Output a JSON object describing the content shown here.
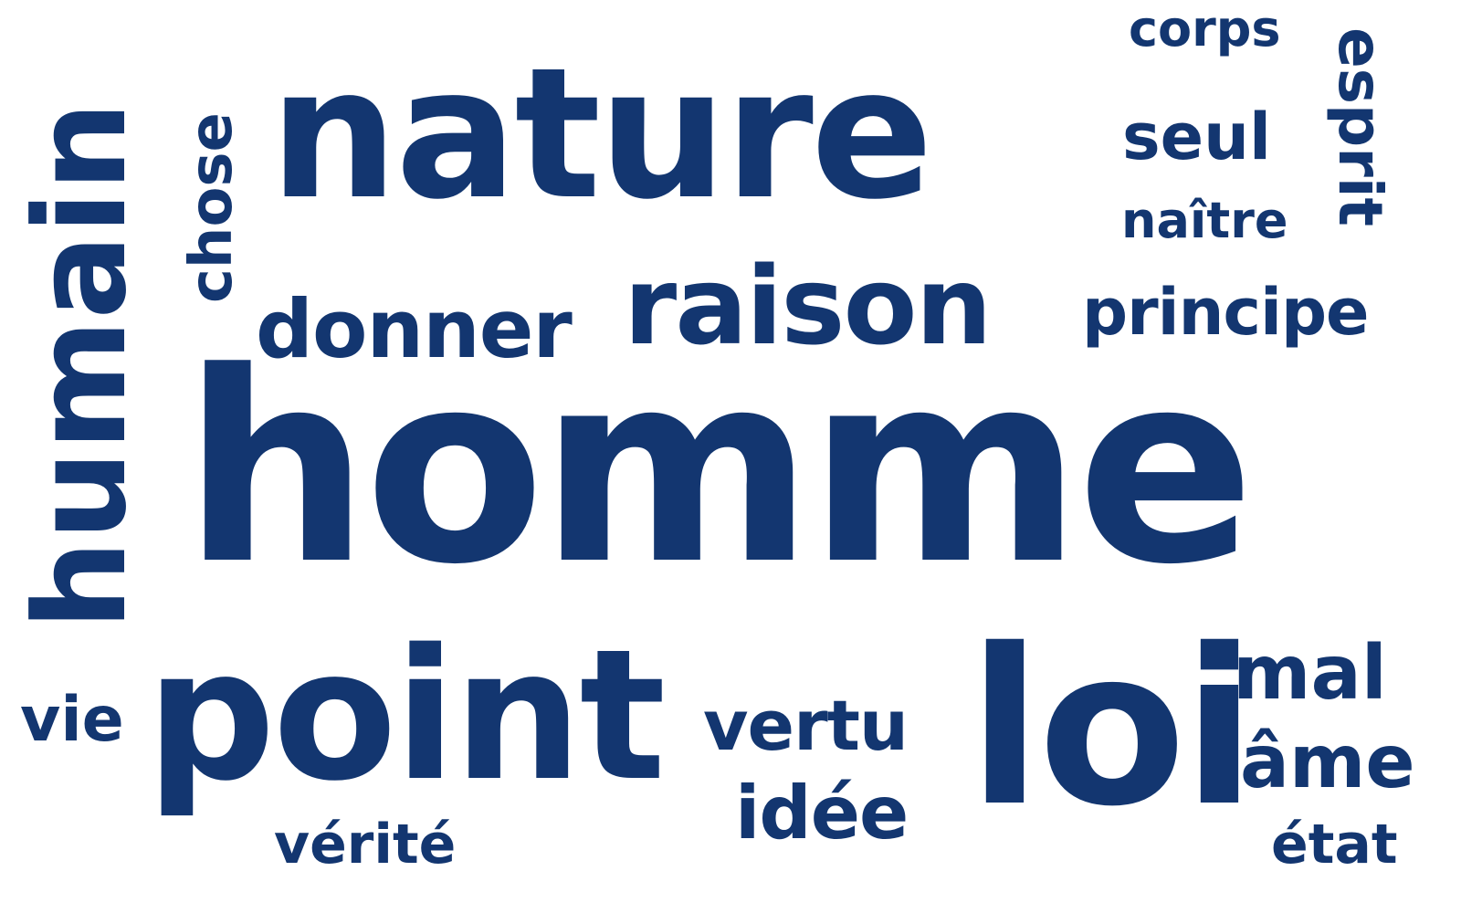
{
  "word_cloud": {
    "color": "#133670",
    "words": {
      "homme": "homme",
      "nature": "nature",
      "humain": "humain",
      "point": "point",
      "loi": "loi",
      "raison": "raison",
      "donner": "donner",
      "principe": "principe",
      "chose": "chose",
      "esprit": "esprit",
      "corps": "corps",
      "seul": "seul",
      "naitre": "naître",
      "vie": "vie",
      "verite": "vérité",
      "vertu": "vertu",
      "idee": "idée",
      "mal": "mal",
      "ame": "âme",
      "etat": "état"
    }
  }
}
